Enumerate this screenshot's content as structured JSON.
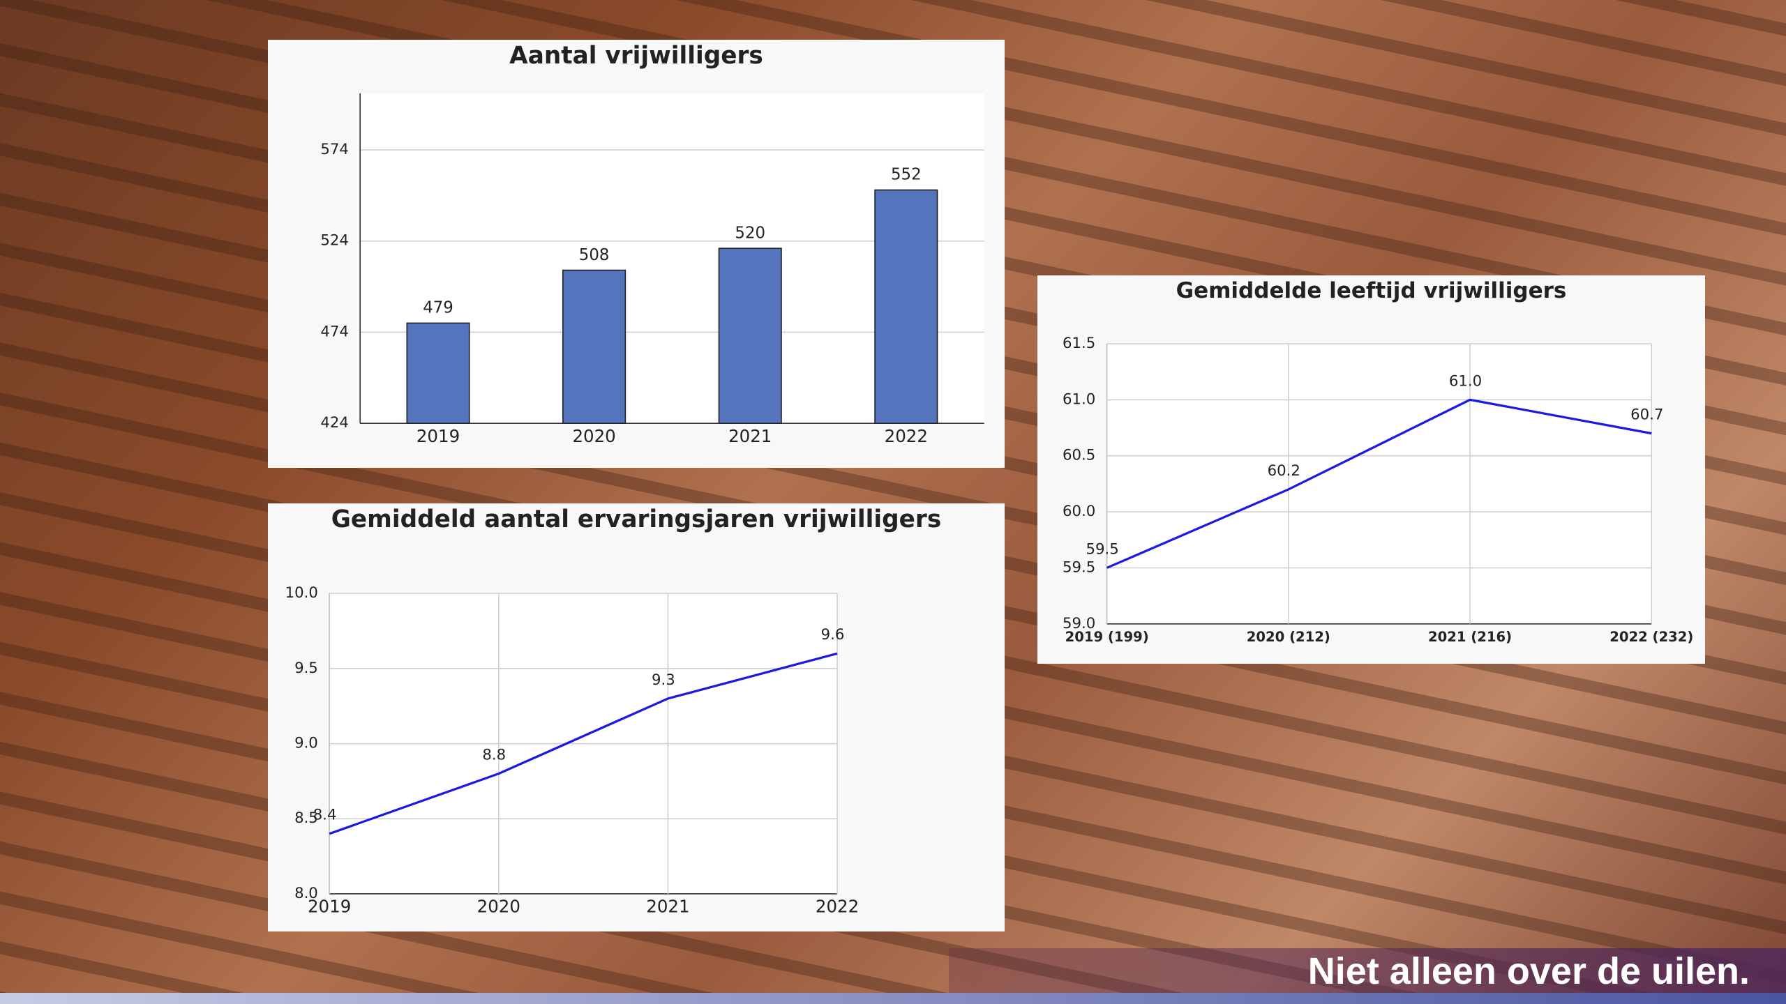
{
  "chart_data": [
    {
      "type": "bar",
      "title": "Aantal vrijwilligers",
      "categories": [
        "2019",
        "2020",
        "2021",
        "2022"
      ],
      "values": [
        479,
        508,
        520,
        552
      ],
      "color": "#5474bd",
      "ylim": [
        424,
        605
      ],
      "yticks": [
        424,
        474,
        524,
        574
      ],
      "grid": true
    },
    {
      "type": "line",
      "title": "Gemiddeld aantal ervaringsjaren vrijwilligers",
      "x": [
        2019,
        2020,
        2021,
        2022
      ],
      "values": [
        8.4,
        8.8,
        9.3,
        9.6
      ],
      "color": "#1a1ae0",
      "xlim": [
        2019,
        2022
      ],
      "xticks": [
        2019,
        2020,
        2021,
        2022
      ],
      "ylim": [
        8.0,
        10.0
      ],
      "yticks": [
        {
          "value": 8.0,
          "label": "8.0"
        },
        8.5,
        {
          "value": 9.0,
          "label": "9.0"
        },
        9.5,
        {
          "value": 10.0,
          "label": "10.0"
        }
      ],
      "grid": true
    },
    {
      "type": "line",
      "title": "Gemiddelde leeftijd vrijwilligers",
      "categories": [
        "2019 (199)",
        "2020 (212)",
        "2021 (216)",
        "2022 (232)"
      ],
      "values": [
        59.5,
        60.2,
        61.0,
        60.7
      ],
      "value_labels": [
        "59.5",
        "60.2",
        "61.0",
        "60.7"
      ],
      "color": "#1a1ae0",
      "ylim": [
        59.0,
        61.5
      ],
      "yticks": [
        {
          "value": 59.0,
          "label": "59.0"
        },
        59.5,
        {
          "value": 60.0,
          "label": "60.0"
        },
        60.5,
        {
          "value": 61.0,
          "label": "61.0"
        },
        61.5
      ],
      "grid": true
    }
  ],
  "footer": {
    "text": "Niet alleen over de uilen."
  }
}
